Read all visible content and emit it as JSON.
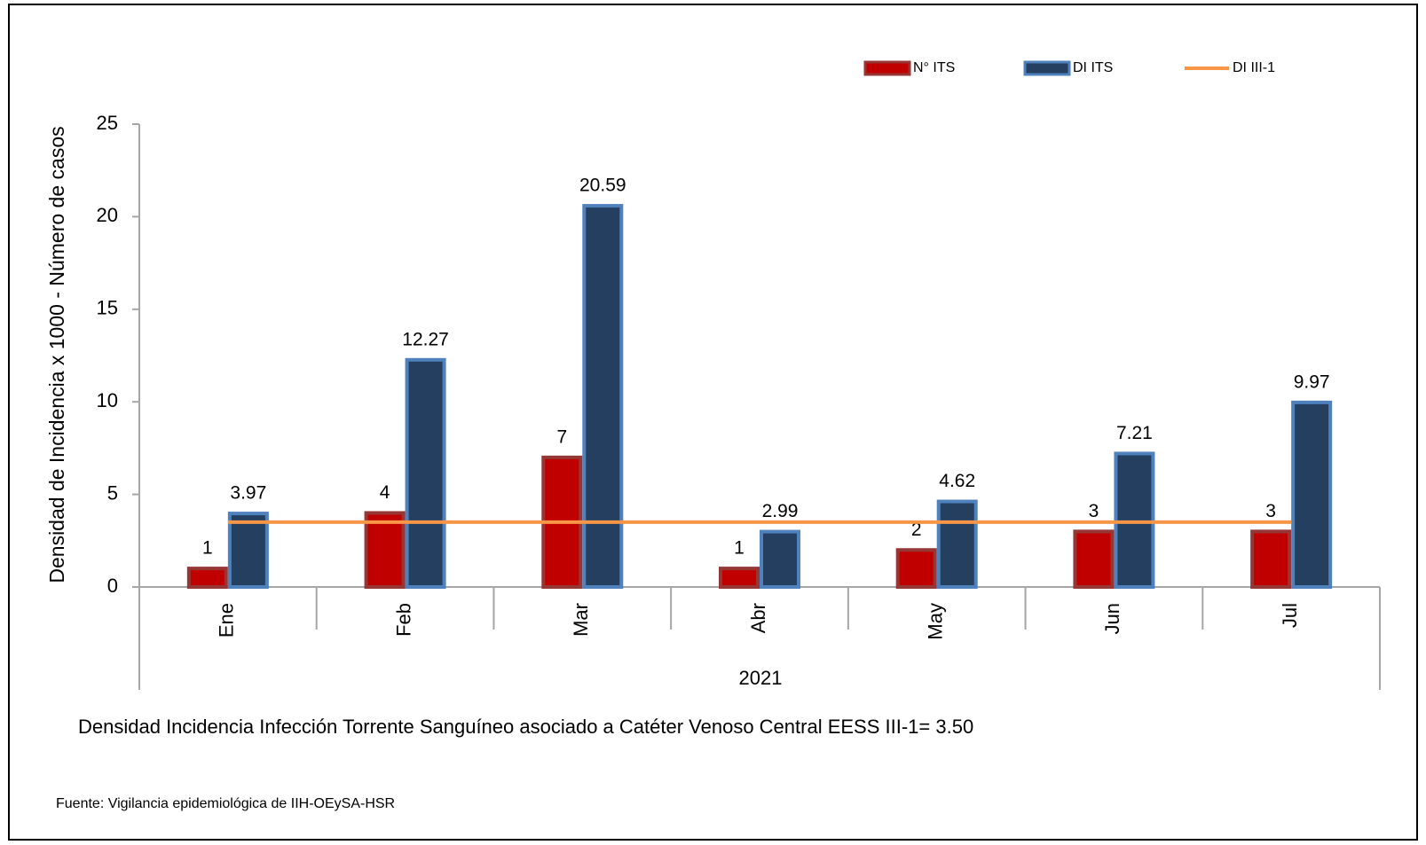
{
  "chart_data": {
    "type": "bar",
    "y_label": "Densidad de Incidencia x 1000  - Número de casos",
    "x_label": "2021",
    "note": "Densidad Incidencia Infección Torrente Sanguíneo asociado a Catéter Venoso Central EESS III-1= 3.50",
    "source": "Fuente: Vigilancia epidemiológica de IIH-OEySA-HSR",
    "categories": [
      "Ene",
      "Feb",
      "Mar",
      "Abr",
      "May",
      "Jun",
      "Jul"
    ],
    "series": [
      {
        "name": "N° ITS",
        "type": "bar",
        "color": "#c00000",
        "values": [
          1,
          4,
          7,
          1,
          2,
          3,
          3
        ]
      },
      {
        "name": "DI ITS",
        "type": "bar",
        "color": "#243f60",
        "values": [
          3.97,
          12.27,
          20.59,
          2.99,
          4.62,
          7.21,
          9.97
        ]
      },
      {
        "name": "DI III-1",
        "type": "line",
        "color": "#f79646",
        "values": [
          3.5,
          3.5,
          3.5,
          3.5,
          3.5,
          3.5,
          3.5
        ]
      }
    ],
    "ylim": [
      0,
      25
    ],
    "yticks": [
      0,
      5,
      10,
      15,
      20,
      25
    ],
    "legend": "top-right"
  }
}
